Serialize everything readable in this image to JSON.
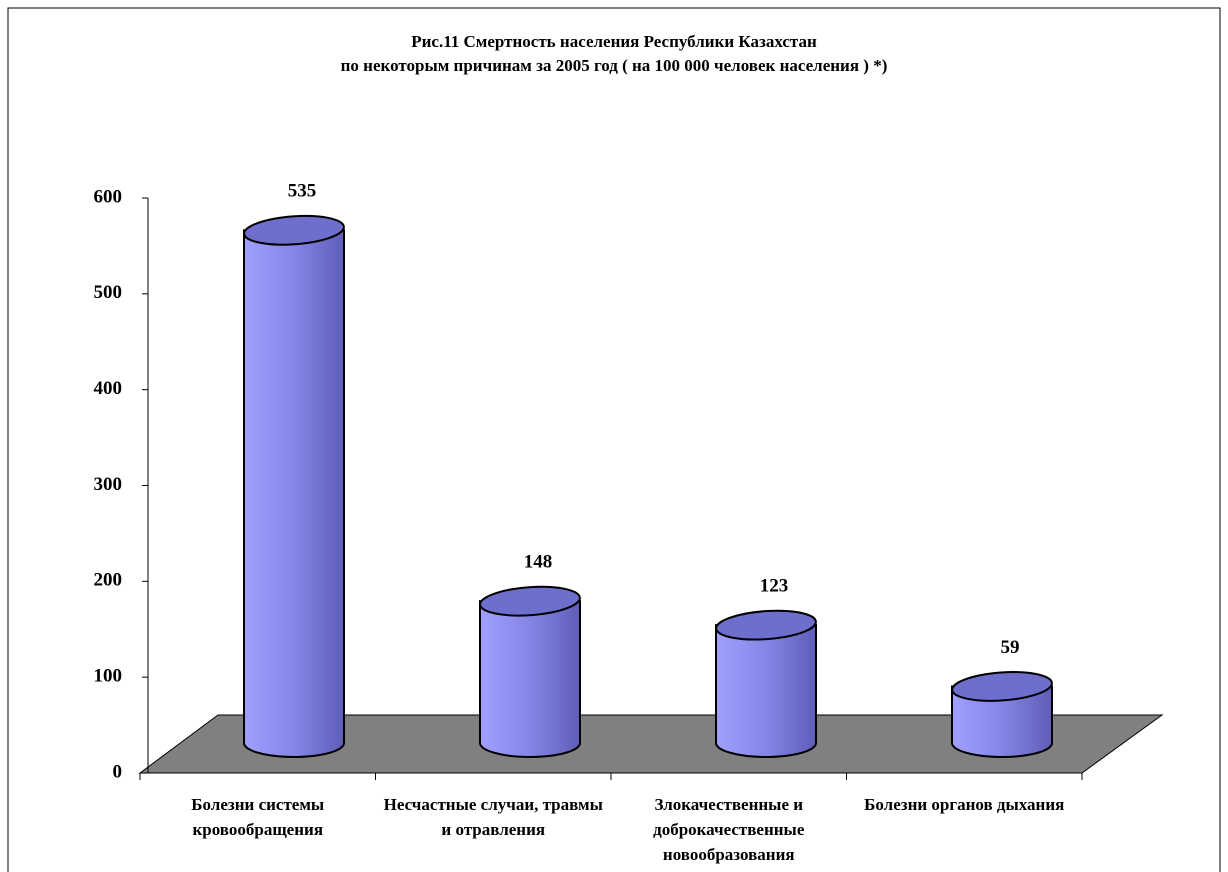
{
  "chart_data": {
    "type": "bar",
    "title": "Рис.11 Смертность населения  Республики  Казахстан\nпо  некоторым причинам   за 2005 год ( на 100 000 человек  населения ) *)",
    "categories": [
      "Болезни системы кровообращения",
      "Несчастные случаи, травмы и отравления",
      "Злокачественные и доброкачественные новообразования",
      "Болезни органов дыхания"
    ],
    "values": [
      535,
      148,
      123,
      59
    ],
    "color": "#9999ff",
    "ylim": [
      0,
      600
    ],
    "yticks": [
      0,
      100,
      200,
      300,
      400,
      500,
      600
    ],
    "grid": false
  }
}
